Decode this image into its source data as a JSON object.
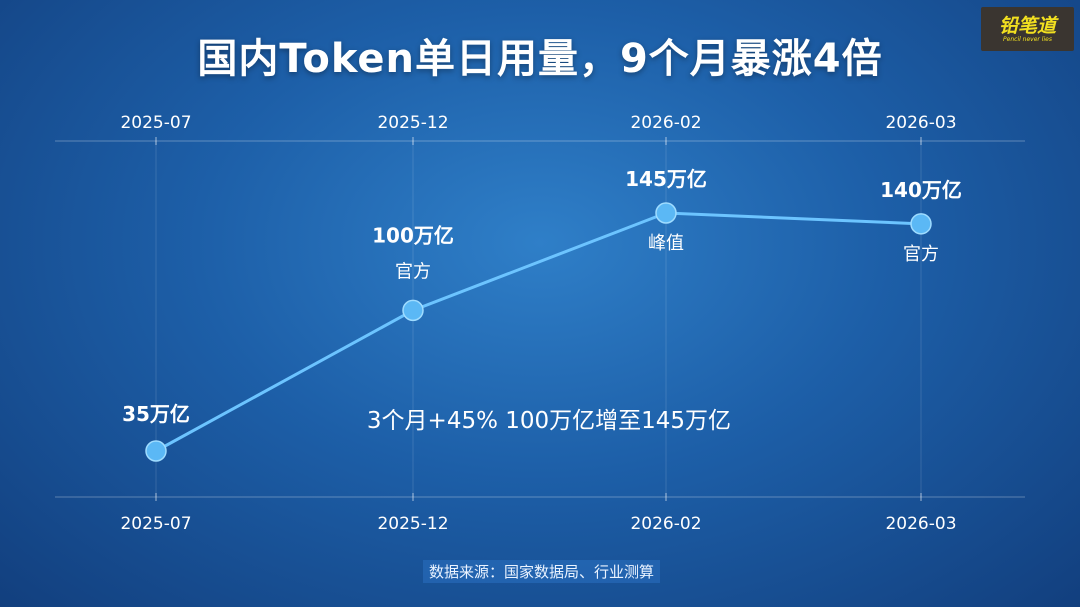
{
  "title": "国内Token单日用量，9个月暴涨4倍",
  "logo": {
    "text": "铅笔道",
    "tagline": "Pencil never lies"
  },
  "source": "数据来源：国家数据局、行业测算",
  "colors": {
    "line": "#6cc4ff",
    "point": "#5bb8f5",
    "background": "#1d5fa8",
    "logo_text": "#f2e020"
  },
  "chart_data": {
    "type": "line",
    "categories": [
      "2025-07",
      "2025-12",
      "2026-02",
      "2026-03"
    ],
    "values": [
      35,
      100,
      145,
      140
    ],
    "value_labels": [
      "35万亿",
      "100万亿",
      "145万亿",
      "140万亿"
    ],
    "point_notes": [
      "",
      "官方",
      "峰值",
      "官方"
    ],
    "annotation": "3个月+45%  100万亿增至145万亿",
    "ylim": [
      0,
      160
    ],
    "grid": true
  }
}
